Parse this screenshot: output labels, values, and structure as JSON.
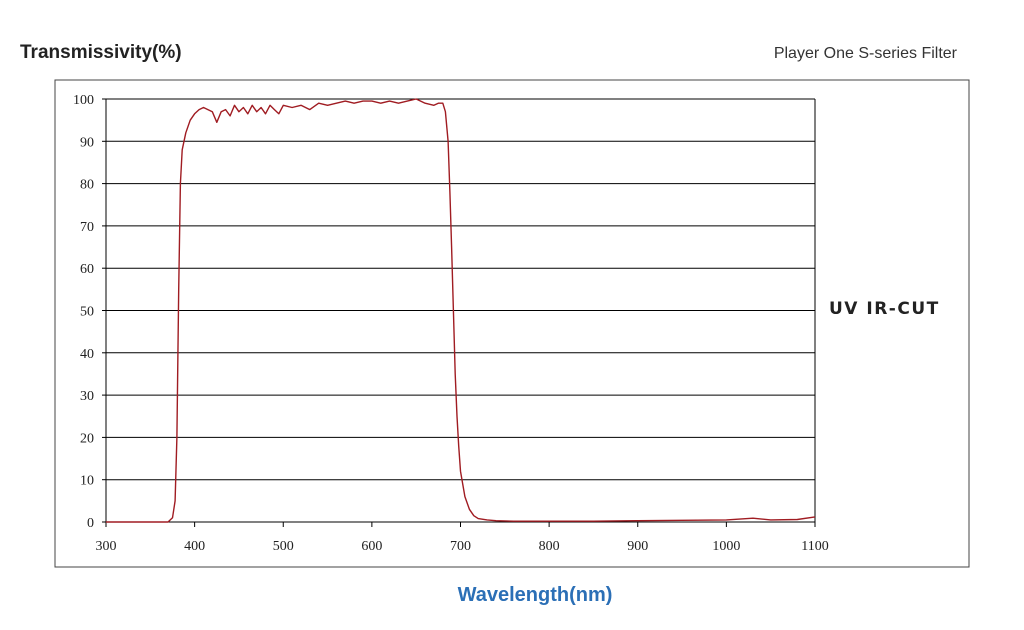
{
  "header": {
    "ylabel": "Transmissivity(%)",
    "subtitle": "Player One S-series Filter"
  },
  "filter_name": "UV IR-CUT",
  "colors": {
    "curve": "#a01c22",
    "grid": "#000000",
    "xlabel": "#2b6fb6"
  },
  "chart_data": {
    "type": "line",
    "title": "",
    "subtitle": "Player One S-series Filter",
    "xlabel": "Wavelength(nm)",
    "ylabel": "Transmissivity(%)",
    "xlim": [
      300,
      1100
    ],
    "ylim": [
      0,
      100
    ],
    "xticks": [
      300,
      400,
      500,
      600,
      700,
      800,
      900,
      1000,
      1100
    ],
    "yticks": [
      0,
      10,
      20,
      30,
      40,
      50,
      60,
      70,
      80,
      90,
      100
    ],
    "grid": "horizontal",
    "series": [
      {
        "name": "UV IR-CUT",
        "x": [
          300,
          370,
          375,
          378,
          380,
          382,
          384,
          386,
          390,
          395,
          400,
          405,
          410,
          415,
          420,
          425,
          430,
          435,
          440,
          445,
          450,
          455,
          460,
          465,
          470,
          475,
          480,
          485,
          490,
          495,
          500,
          510,
          520,
          530,
          540,
          550,
          560,
          570,
          580,
          590,
          600,
          610,
          620,
          630,
          640,
          650,
          660,
          670,
          675,
          680,
          683,
          686,
          688,
          690,
          692,
          694,
          696,
          698,
          700,
          705,
          710,
          715,
          720,
          730,
          740,
          760,
          800,
          850,
          900,
          950,
          1000,
          1030,
          1050,
          1080,
          1100
        ],
        "y": [
          0,
          0,
          1,
          5,
          20,
          55,
          80,
          88,
          92,
          95,
          96.5,
          97.5,
          98,
          97.5,
          97,
          94.5,
          97,
          97.5,
          96,
          98.5,
          97,
          98,
          96.5,
          98.5,
          97,
          98,
          96.5,
          98.5,
          97.5,
          96.5,
          98.5,
          98,
          98.5,
          97.5,
          99,
          98.5,
          99,
          99.5,
          99,
          99.5,
          99.5,
          99,
          99.5,
          99,
          99.5,
          100,
          99,
          98.5,
          99,
          99,
          97,
          90,
          78,
          65,
          50,
          35,
          25,
          18,
          12,
          6,
          3,
          1.5,
          0.8,
          0.5,
          0.3,
          0.2,
          0.2,
          0.2,
          0.3,
          0.4,
          0.5,
          0.9,
          0.5,
          0.6,
          1.2
        ]
      }
    ]
  }
}
